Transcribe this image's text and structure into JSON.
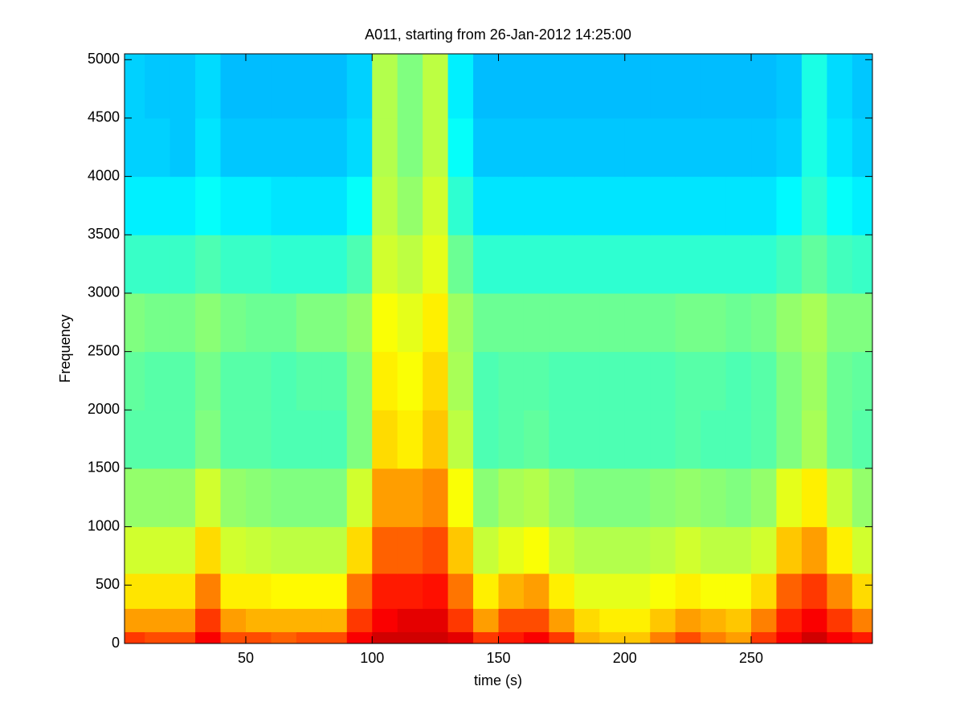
{
  "chart_data": {
    "type": "heatmap",
    "title": "A011, starting from 26-Jan-2012 14:25:00",
    "x_label": "time (s)",
    "y_label": "Frequency",
    "colormap": "jet",
    "clim": [
      0,
      1
    ],
    "xlim": [
      2,
      298
    ],
    "ylim": [
      0,
      5050
    ],
    "xticks": [
      50,
      100,
      150,
      200,
      250
    ],
    "yticks": [
      0,
      500,
      1000,
      1500,
      2000,
      2500,
      3000,
      3500,
      4000,
      4500,
      5000
    ],
    "x_edges": [
      2,
      10,
      20,
      30,
      40,
      50,
      60,
      70,
      80,
      90,
      100,
      110,
      120,
      130,
      140,
      150,
      160,
      170,
      180,
      190,
      200,
      210,
      220,
      230,
      240,
      250,
      260,
      270,
      280,
      290,
      298
    ],
    "y_edges": [
      0,
      100,
      300,
      600,
      1000,
      1500,
      2000,
      2500,
      3000,
      3500,
      4000,
      4500,
      5050
    ],
    "z": [
      [
        0.82,
        0.8,
        0.8,
        0.88,
        0.8,
        0.8,
        0.78,
        0.8,
        0.8,
        0.88,
        0.92,
        0.92,
        0.92,
        0.9,
        0.82,
        0.85,
        0.88,
        0.82,
        0.7,
        0.68,
        0.68,
        0.75,
        0.8,
        0.75,
        0.72,
        0.82,
        0.88,
        0.92,
        0.88,
        0.85
      ],
      [
        0.72,
        0.72,
        0.72,
        0.82,
        0.72,
        0.7,
        0.7,
        0.7,
        0.7,
        0.82,
        0.88,
        0.9,
        0.9,
        0.82,
        0.72,
        0.8,
        0.8,
        0.72,
        0.66,
        0.64,
        0.64,
        0.68,
        0.72,
        0.7,
        0.68,
        0.75,
        0.84,
        0.88,
        0.82,
        0.75
      ],
      [
        0.65,
        0.65,
        0.65,
        0.75,
        0.64,
        0.64,
        0.63,
        0.63,
        0.63,
        0.76,
        0.85,
        0.85,
        0.86,
        0.76,
        0.64,
        0.7,
        0.72,
        0.64,
        0.6,
        0.6,
        0.6,
        0.62,
        0.64,
        0.62,
        0.62,
        0.66,
        0.78,
        0.82,
        0.74,
        0.66
      ],
      [
        0.58,
        0.58,
        0.58,
        0.66,
        0.58,
        0.57,
        0.56,
        0.56,
        0.56,
        0.66,
        0.78,
        0.78,
        0.8,
        0.68,
        0.57,
        0.6,
        0.62,
        0.57,
        0.55,
        0.55,
        0.55,
        0.56,
        0.58,
        0.56,
        0.56,
        0.58,
        0.68,
        0.72,
        0.64,
        0.58
      ],
      [
        0.52,
        0.52,
        0.52,
        0.58,
        0.52,
        0.51,
        0.5,
        0.5,
        0.5,
        0.58,
        0.72,
        0.72,
        0.74,
        0.62,
        0.51,
        0.54,
        0.55,
        0.52,
        0.5,
        0.5,
        0.5,
        0.51,
        0.52,
        0.51,
        0.5,
        0.52,
        0.6,
        0.64,
        0.57,
        0.52
      ],
      [
        0.46,
        0.46,
        0.46,
        0.5,
        0.46,
        0.46,
        0.45,
        0.45,
        0.45,
        0.5,
        0.66,
        0.64,
        0.68,
        0.56,
        0.45,
        0.46,
        0.47,
        0.45,
        0.45,
        0.45,
        0.45,
        0.45,
        0.46,
        0.45,
        0.45,
        0.46,
        0.5,
        0.54,
        0.48,
        0.46
      ],
      [
        0.47,
        0.46,
        0.46,
        0.49,
        0.46,
        0.46,
        0.45,
        0.46,
        0.46,
        0.5,
        0.64,
        0.62,
        0.66,
        0.54,
        0.45,
        0.46,
        0.46,
        0.45,
        0.45,
        0.45,
        0.45,
        0.45,
        0.46,
        0.46,
        0.45,
        0.46,
        0.5,
        0.53,
        0.48,
        0.47
      ],
      [
        0.5,
        0.49,
        0.49,
        0.51,
        0.49,
        0.48,
        0.48,
        0.5,
        0.5,
        0.52,
        0.62,
        0.6,
        0.64,
        0.53,
        0.48,
        0.48,
        0.48,
        0.48,
        0.48,
        0.48,
        0.48,
        0.48,
        0.49,
        0.49,
        0.48,
        0.49,
        0.52,
        0.54,
        0.5,
        0.5
      ],
      [
        0.43,
        0.43,
        0.43,
        0.45,
        0.43,
        0.43,
        0.42,
        0.42,
        0.42,
        0.45,
        0.58,
        0.56,
        0.6,
        0.48,
        0.42,
        0.42,
        0.42,
        0.42,
        0.42,
        0.42,
        0.42,
        0.42,
        0.42,
        0.42,
        0.42,
        0.42,
        0.44,
        0.47,
        0.44,
        0.43
      ],
      [
        0.36,
        0.36,
        0.36,
        0.38,
        0.36,
        0.36,
        0.35,
        0.35,
        0.35,
        0.38,
        0.56,
        0.52,
        0.58,
        0.42,
        0.35,
        0.35,
        0.35,
        0.35,
        0.35,
        0.35,
        0.35,
        0.35,
        0.35,
        0.35,
        0.35,
        0.35,
        0.37,
        0.42,
        0.38,
        0.36
      ],
      [
        0.33,
        0.33,
        0.32,
        0.35,
        0.32,
        0.32,
        0.32,
        0.32,
        0.32,
        0.34,
        0.55,
        0.5,
        0.56,
        0.38,
        0.32,
        0.32,
        0.32,
        0.32,
        0.32,
        0.32,
        0.32,
        0.32,
        0.32,
        0.32,
        0.32,
        0.32,
        0.33,
        0.4,
        0.35,
        0.33
      ],
      [
        0.33,
        0.32,
        0.32,
        0.34,
        0.31,
        0.31,
        0.31,
        0.31,
        0.31,
        0.33,
        0.55,
        0.5,
        0.56,
        0.36,
        0.31,
        0.31,
        0.31,
        0.31,
        0.31,
        0.31,
        0.31,
        0.31,
        0.31,
        0.31,
        0.31,
        0.31,
        0.32,
        0.4,
        0.34,
        0.32
      ]
    ]
  }
}
